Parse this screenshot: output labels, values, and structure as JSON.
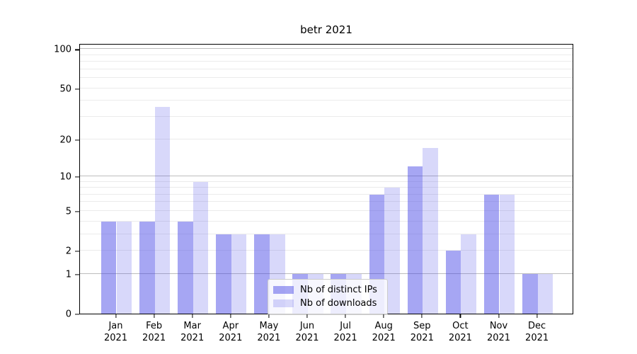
{
  "chart_data": {
    "type": "bar",
    "title": "betr 2021",
    "categories": [
      "Jan",
      "Feb",
      "Mar",
      "Apr",
      "May",
      "Jun",
      "Jul",
      "Aug",
      "Sep",
      "Oct",
      "Nov",
      "Dec"
    ],
    "x_tick_second_line": "2021",
    "series": [
      {
        "name": "Nb of distinct IPs",
        "color": "rgba(70,70,230,0.48)",
        "values": [
          4,
          4,
          4,
          3,
          3,
          1,
          1,
          7,
          12,
          2,
          7,
          1
        ]
      },
      {
        "name": "Nb of downloads",
        "color": "rgba(70,70,230,0.21)",
        "values": [
          4,
          36,
          9,
          3,
          3,
          1,
          1,
          8,
          17,
          3,
          7,
          1
        ]
      }
    ],
    "yscale": "log1p",
    "ylim": [
      0,
      111
    ],
    "y_tick_values": [
      0,
      1,
      2,
      5,
      10,
      20,
      50,
      100
    ],
    "major_gridlines": [
      1,
      10,
      100
    ],
    "minor_gridlines": [
      2,
      3,
      4,
      5,
      6,
      7,
      8,
      9,
      20,
      30,
      40,
      50,
      60,
      70,
      80,
      90
    ],
    "grid": true,
    "legend_position": "lower center",
    "xlabel": "",
    "ylabel": ""
  },
  "colors": {
    "background": "#ffffff",
    "axis": "#000000",
    "major_grid": "#bdbdbd",
    "minor_grid": "#ebebeb",
    "legend_border": "#cccccc",
    "text": "#000000"
  }
}
